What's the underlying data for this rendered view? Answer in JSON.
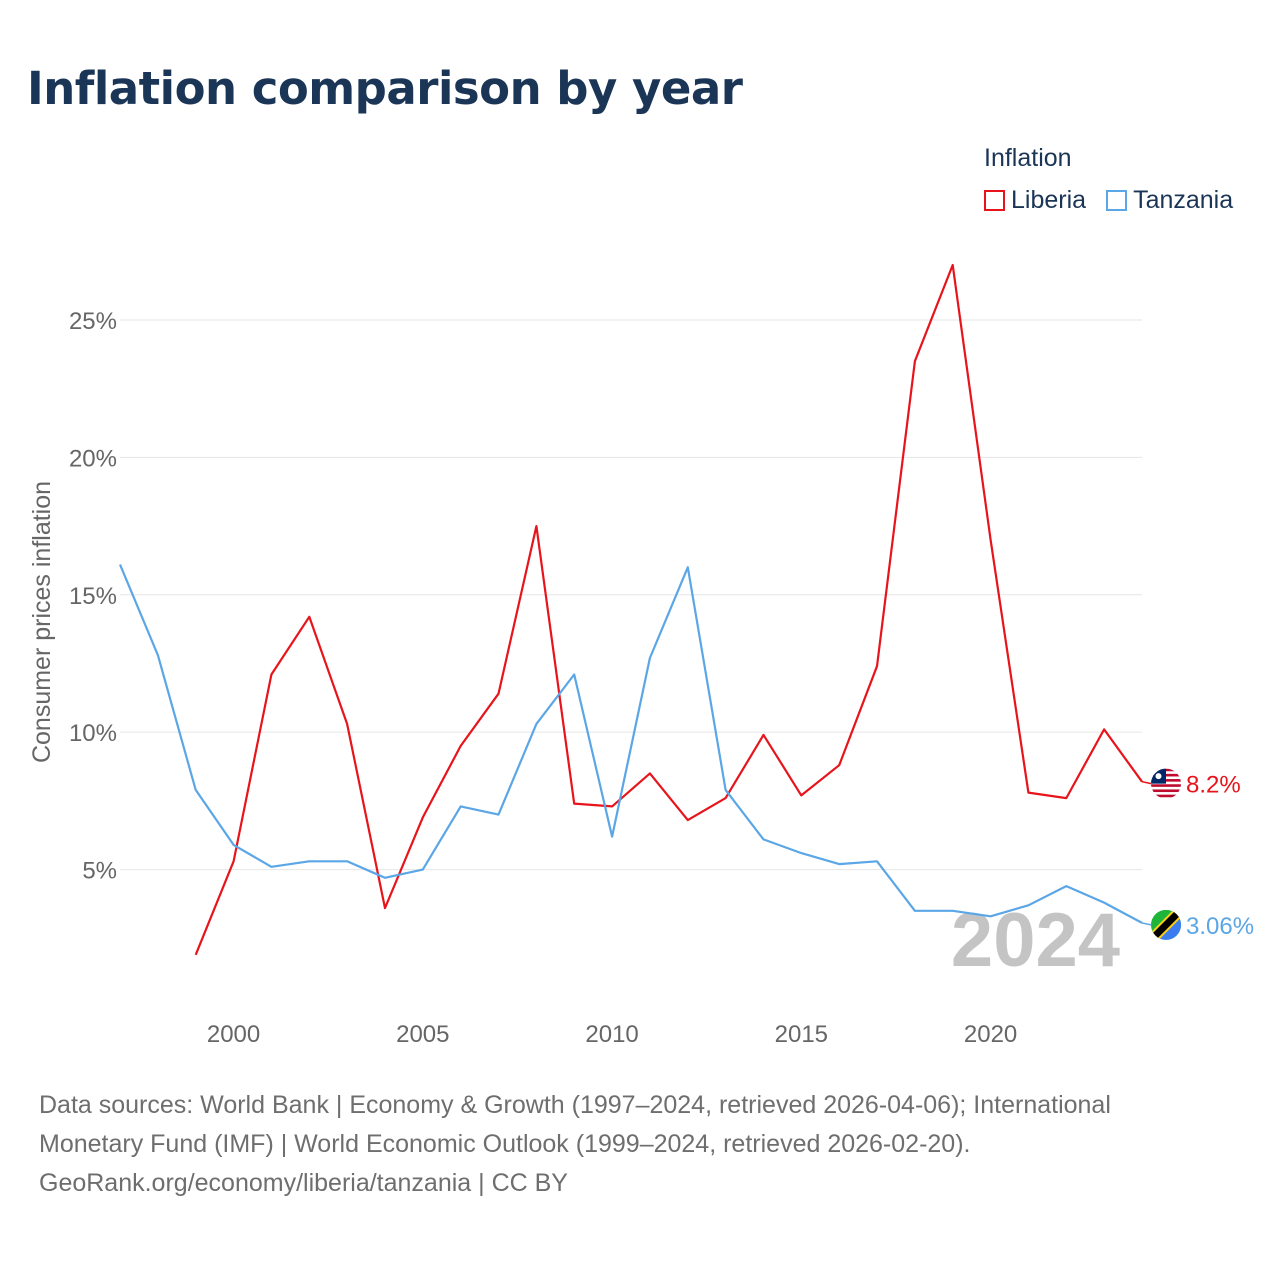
{
  "title": "Inflation comparison by year",
  "legend": {
    "title": "Inflation",
    "items": [
      {
        "label": "Liberia",
        "color": "#e8141b"
      },
      {
        "label": "Tanzania",
        "color": "#5ba6e6"
      }
    ]
  },
  "current_year_label": "2024",
  "chart_data": {
    "type": "line",
    "title": "Inflation comparison by year",
    "xlabel": "",
    "ylabel": "Consumer prices inflation",
    "xlim": [
      1997,
      2024
    ],
    "ylim": [
      0,
      27
    ],
    "x_ticks": [
      2000,
      2005,
      2010,
      2015,
      2020
    ],
    "y_ticks": [
      5,
      10,
      15,
      20,
      25
    ],
    "y_tick_labels": [
      "5%",
      "10%",
      "15%",
      "20%",
      "25%"
    ],
    "grid": true,
    "legend_position": "top-right",
    "series": [
      {
        "name": "Liberia",
        "color": "#e8141b",
        "end_label": "8.2%",
        "flag_icon": "liberia-flag-icon",
        "x": [
          1999,
          2000,
          2001,
          2002,
          2003,
          2004,
          2005,
          2006,
          2007,
          2008,
          2009,
          2010,
          2011,
          2012,
          2013,
          2014,
          2015,
          2016,
          2017,
          2018,
          2019,
          2020,
          2021,
          2022,
          2023,
          2024
        ],
        "values": [
          1.9,
          5.3,
          12.1,
          14.2,
          10.3,
          3.6,
          6.9,
          9.5,
          11.4,
          17.5,
          7.4,
          7.3,
          8.5,
          6.8,
          7.6,
          9.9,
          7.7,
          8.8,
          12.4,
          23.5,
          27.0,
          17.0,
          7.8,
          7.6,
          10.1,
          8.2
        ]
      },
      {
        "name": "Tanzania",
        "color": "#5ba6e6",
        "end_label": "3.06%",
        "flag_icon": "tanzania-flag-icon",
        "x": [
          1997,
          1998,
          1999,
          2000,
          2001,
          2002,
          2003,
          2004,
          2005,
          2006,
          2007,
          2008,
          2009,
          2010,
          2011,
          2012,
          2013,
          2014,
          2015,
          2016,
          2017,
          2018,
          2019,
          2020,
          2021,
          2022,
          2023,
          2024
        ],
        "values": [
          16.1,
          12.8,
          7.9,
          5.9,
          5.1,
          5.3,
          5.3,
          4.7,
          5.0,
          7.3,
          7.0,
          10.3,
          12.1,
          6.2,
          12.7,
          16.0,
          7.9,
          6.1,
          5.6,
          5.2,
          5.3,
          3.5,
          3.5,
          3.3,
          3.7,
          4.4,
          3.8,
          3.06
        ]
      }
    ]
  },
  "source": {
    "line1": "Data sources: World Bank | Economy & Growth (1997–2024, retrieved 2026-04-06); International",
    "line2": "Monetary Fund (IMF) | World Economic Outlook (1999–2024, retrieved 2026-02-20).",
    "line3": "GeoRank.org/economy/liberia/tanzania | CC BY"
  }
}
